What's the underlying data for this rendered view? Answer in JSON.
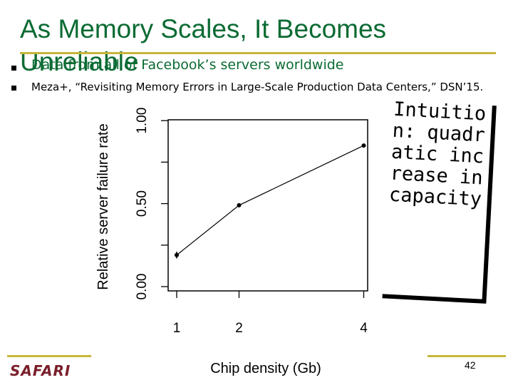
{
  "slide": {
    "title_line1": "As Memory Scales, It Becomes",
    "title_line2": "Unreliable",
    "bullets": [
      "Data from all of Facebook’s servers worldwide",
      "Meza+, “Revisiting Memory Errors in Large-Scale Production Data Centers,” DSN’15."
    ],
    "callout_text": "Intuition: quadratic increase in capacity",
    "logo_text": "SAFARI",
    "page_number": "42",
    "accent_color": "#0b6b33",
    "rule_color": "#c8b63a"
  },
  "chart_data": {
    "type": "line",
    "x": [
      1,
      2,
      4
    ],
    "y": [
      0.19,
      0.49,
      0.85
    ],
    "y_err": [
      0.02,
      0.01,
      0.01
    ],
    "xlabel": "Chip density (Gb)",
    "ylabel": "Relative server failure rate",
    "x_ticks": [
      "1",
      "2",
      "4"
    ],
    "y_ticks": [
      "0.00",
      "0.50",
      "1.00"
    ],
    "ylim": [
      0.0,
      1.0
    ],
    "grid": false,
    "series_color": "#000000"
  }
}
